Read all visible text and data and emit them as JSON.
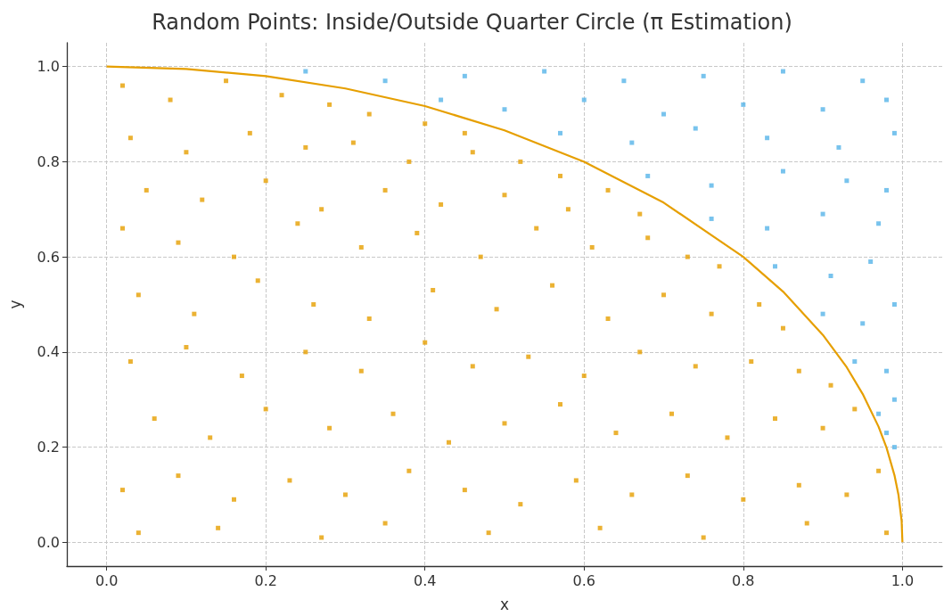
{
  "chart_data": {
    "type": "scatter",
    "title": "Random Points: Inside/Outside Quarter Circle (π Estimation)",
    "xlabel": "x",
    "ylabel": "y",
    "xlim": [
      -0.05,
      1.05
    ],
    "ylim": [
      -0.05,
      1.05
    ],
    "xticks": [
      {
        "value": 0,
        "label": "0.0"
      },
      0.2,
      0.4,
      0.6,
      0.8,
      {
        "value": 1,
        "label": "1.0"
      }
    ],
    "yticks": [
      {
        "value": 0,
        "label": "0.0"
      },
      0.2,
      0.4,
      0.6,
      0.8,
      {
        "value": 1,
        "label": "1.0"
      }
    ],
    "grid": true,
    "marker": "square",
    "line_style": "solid",
    "series": [
      {
        "color": "#e69f00",
        "x": [
          0.02,
          0.08,
          0.15,
          0.22,
          0.28,
          0.33,
          0.4,
          0.45,
          0.03,
          0.1,
          0.18,
          0.25,
          0.31,
          0.38,
          0.46,
          0.52,
          0.57,
          0.05,
          0.12,
          0.2,
          0.27,
          0.35,
          0.42,
          0.5,
          0.58,
          0.63,
          0.67,
          0.02,
          0.09,
          0.16,
          0.24,
          0.32,
          0.39,
          0.47,
          0.54,
          0.61,
          0.68,
          0.73,
          0.77,
          0.04,
          0.11,
          0.19,
          0.26,
          0.33,
          0.41,
          0.49,
          0.56,
          0.63,
          0.7,
          0.76,
          0.82,
          0.85,
          0.03,
          0.1,
          0.17,
          0.25,
          0.32,
          0.4,
          0.46,
          0.53,
          0.6,
          0.67,
          0.74,
          0.81,
          0.87,
          0.91,
          0.06,
          0.13,
          0.2,
          0.28,
          0.36,
          0.43,
          0.5,
          0.57,
          0.64,
          0.71,
          0.78,
          0.84,
          0.9,
          0.94,
          0.02,
          0.09,
          0.16,
          0.23,
          0.3,
          0.38,
          0.45,
          0.52,
          0.59,
          0.66,
          0.73,
          0.8,
          0.87,
          0.93,
          0.97,
          0.04,
          0.14,
          0.27,
          0.35,
          0.48,
          0.62,
          0.75,
          0.88,
          0.98
        ],
        "values": [
          0.96,
          0.93,
          0.97,
          0.94,
          0.92,
          0.9,
          0.88,
          0.86,
          0.85,
          0.82,
          0.86,
          0.83,
          0.84,
          0.8,
          0.82,
          0.8,
          0.77,
          0.74,
          0.72,
          0.76,
          0.7,
          0.74,
          0.71,
          0.73,
          0.7,
          0.74,
          0.69,
          0.66,
          0.63,
          0.6,
          0.67,
          0.62,
          0.65,
          0.6,
          0.66,
          0.62,
          0.64,
          0.6,
          0.58,
          0.52,
          0.48,
          0.55,
          0.5,
          0.47,
          0.53,
          0.49,
          0.54,
          0.47,
          0.52,
          0.48,
          0.5,
          0.45,
          0.38,
          0.41,
          0.35,
          0.4,
          0.36,
          0.42,
          0.37,
          0.39,
          0.35,
          0.4,
          0.37,
          0.38,
          0.36,
          0.33,
          0.26,
          0.22,
          0.28,
          0.24,
          0.27,
          0.21,
          0.25,
          0.29,
          0.23,
          0.27,
          0.22,
          0.26,
          0.24,
          0.28,
          0.11,
          0.14,
          0.09,
          0.13,
          0.1,
          0.15,
          0.11,
          0.08,
          0.13,
          0.1,
          0.14,
          0.09,
          0.12,
          0.1,
          0.15,
          0.02,
          0.03,
          0.01,
          0.04,
          0.02,
          0.03,
          0.01,
          0.04,
          0.02
        ]
      },
      {
        "color": "#56b4e9",
        "x": [
          0.25,
          0.35,
          0.45,
          0.55,
          0.65,
          0.75,
          0.85,
          0.95,
          0.42,
          0.5,
          0.6,
          0.7,
          0.8,
          0.9,
          0.98,
          0.57,
          0.66,
          0.74,
          0.83,
          0.92,
          0.99,
          0.68,
          0.76,
          0.85,
          0.93,
          0.98,
          0.76,
          0.83,
          0.9,
          0.97,
          0.84,
          0.91,
          0.96,
          0.9,
          0.95,
          0.99,
          0.94,
          0.98,
          0.97,
          0.99,
          0.99,
          0.98
        ],
        "values": [
          0.99,
          0.97,
          0.98,
          0.99,
          0.97,
          0.98,
          0.99,
          0.97,
          0.93,
          0.91,
          0.93,
          0.9,
          0.92,
          0.91,
          0.93,
          0.86,
          0.84,
          0.87,
          0.85,
          0.83,
          0.86,
          0.77,
          0.75,
          0.78,
          0.76,
          0.74,
          0.68,
          0.66,
          0.69,
          0.67,
          0.58,
          0.56,
          0.59,
          0.48,
          0.46,
          0.5,
          0.38,
          0.36,
          0.27,
          0.3,
          0.2,
          0.23
        ]
      },
      {
        "type": "line",
        "marker": "none",
        "color": "#e69f00",
        "x": [
          0,
          0.1,
          0.2,
          0.3,
          0.4,
          0.5,
          0.6,
          0.7,
          0.8,
          0.85,
          0.9,
          0.93,
          0.95,
          0.97,
          0.98,
          0.99,
          0.995,
          0.999,
          1
        ],
        "values": [
          1,
          0.995,
          0.98,
          0.954,
          0.917,
          0.866,
          0.8,
          0.714,
          0.6,
          0.527,
          0.436,
          0.368,
          0.312,
          0.243,
          0.199,
          0.141,
          0.1,
          0.045,
          0
        ]
      }
    ]
  }
}
